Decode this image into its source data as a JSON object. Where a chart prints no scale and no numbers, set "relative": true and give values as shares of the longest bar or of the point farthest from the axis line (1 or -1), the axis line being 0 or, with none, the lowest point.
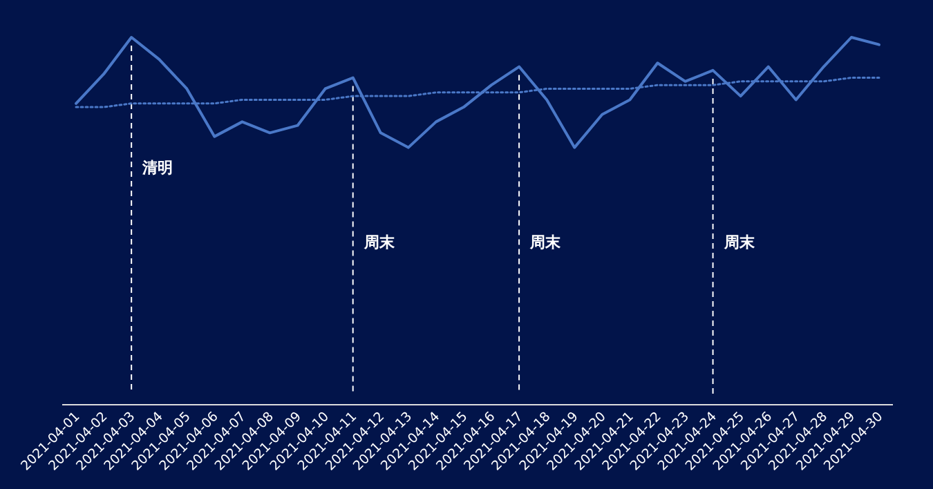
{
  "chart_data": {
    "type": "line",
    "relative": true,
    "marker": "none",
    "categories": [
      "2021-04-01",
      "2021-04-02",
      "2021-04-03",
      "2021-04-04",
      "2021-04-05",
      "2021-04-06",
      "2021-04-07",
      "2021-04-08",
      "2021-04-09",
      "2021-04-10",
      "2021-04-11",
      "2021-04-12",
      "2021-04-13",
      "2021-04-14",
      "2021-04-15",
      "2021-04-16",
      "2021-04-17",
      "2021-04-18",
      "2021-04-19",
      "2021-04-20",
      "2021-04-21",
      "2021-04-22",
      "2021-04-23",
      "2021-04-24",
      "2021-04-25",
      "2021-04-26",
      "2021-04-27",
      "2021-04-28",
      "2021-04-29",
      "2021-04-30"
    ],
    "series": [
      {
        "color": "#4a78c8",
        "line_style": "solid",
        "values": [
          0.82,
          0.9,
          1.0,
          0.94,
          0.86,
          0.73,
          0.77,
          0.74,
          0.76,
          0.86,
          0.89,
          0.74,
          0.7,
          0.77,
          0.81,
          0.87,
          0.92,
          0.83,
          0.7,
          0.79,
          0.83,
          0.93,
          0.88,
          0.91,
          0.84,
          0.92,
          0.83,
          0.92,
          1.0,
          0.98
        ]
      },
      {
        "type": "line",
        "color": "#4a78c8",
        "line_style": "dotted",
        "values": [
          0.81,
          0.81,
          0.82,
          0.82,
          0.82,
          0.82,
          0.83,
          0.83,
          0.83,
          0.83,
          0.84,
          0.84,
          0.84,
          0.85,
          0.85,
          0.85,
          0.85,
          0.86,
          0.86,
          0.86,
          0.86,
          0.87,
          0.87,
          0.87,
          0.88,
          0.88,
          0.88,
          0.88,
          0.89,
          0.89
        ]
      }
    ],
    "ref_lines": [
      {
        "axis": "x",
        "value": "2021-04-03",
        "label": "清明",
        "color": "#ffffff",
        "line_style": "dashed"
      },
      {
        "axis": "x",
        "value": "2021-04-11",
        "label": "周末",
        "color": "#ffffff",
        "line_style": "dashed"
      },
      {
        "axis": "x",
        "value": "2021-04-17",
        "label": "周末",
        "color": "#ffffff",
        "line_style": "dashed"
      },
      {
        "axis": "x",
        "value": "2021-04-24",
        "label": "周末",
        "color": "#ffffff",
        "line_style": "dashed"
      }
    ]
  }
}
